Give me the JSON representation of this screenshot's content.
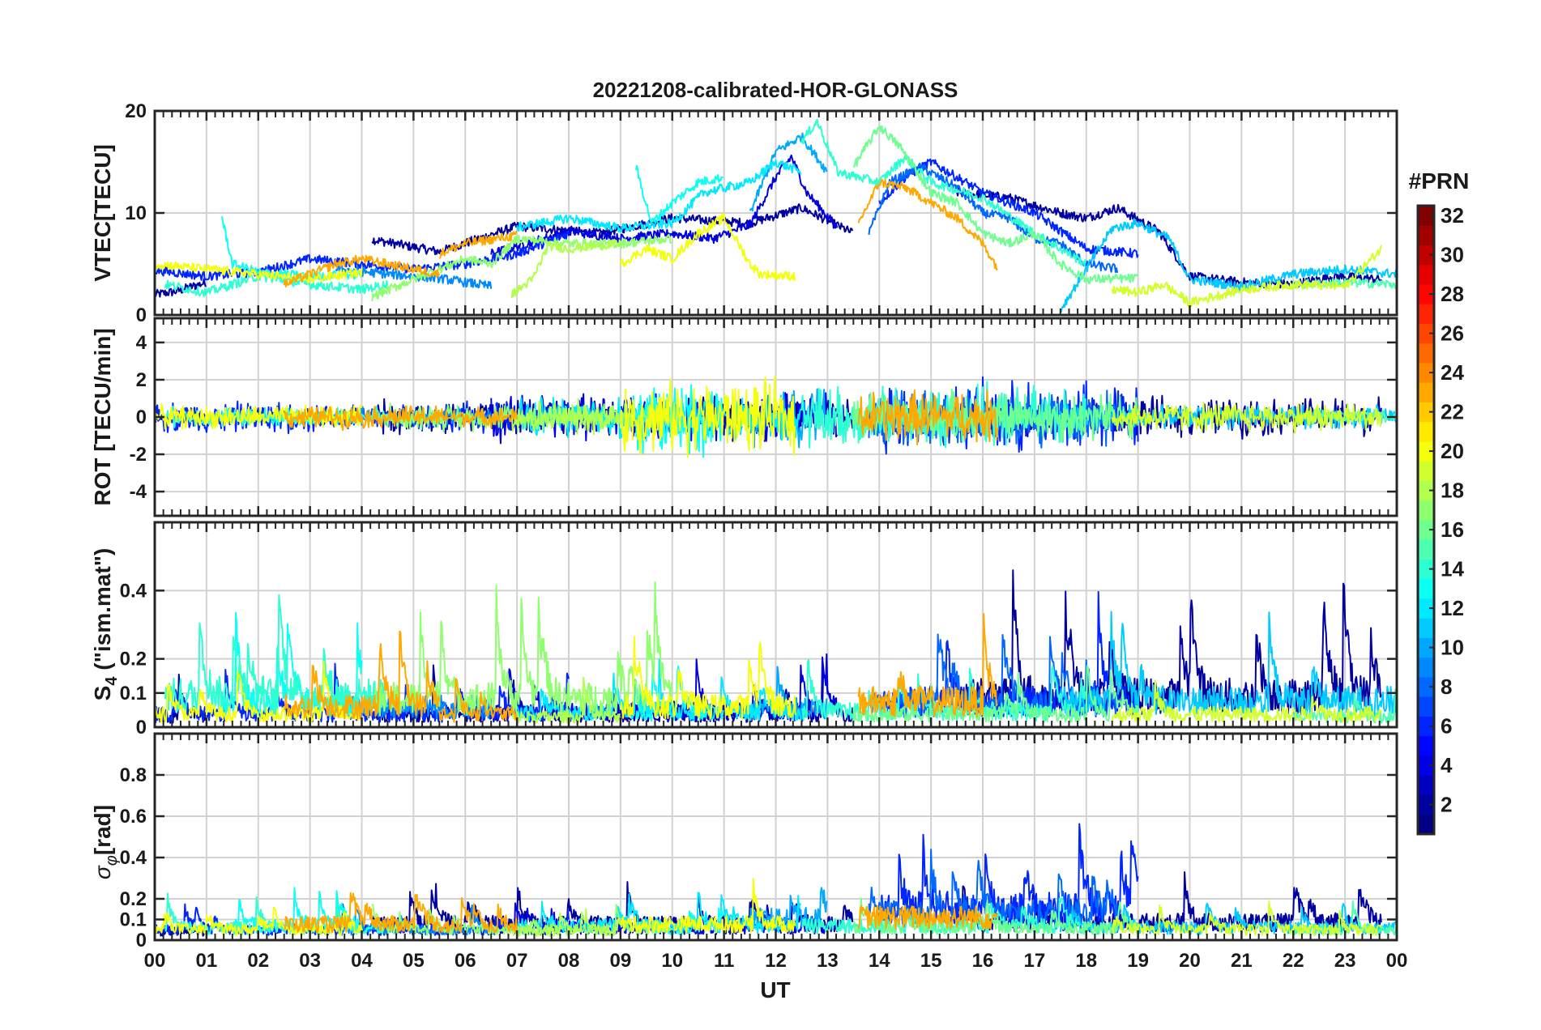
{
  "chart_data": {
    "type": "line",
    "title": "20221208-calibrated-HOR-GLONASS",
    "xlabel": "UT",
    "x_range_hours": [
      0,
      24
    ],
    "x_tick_labels": [
      "00",
      "01",
      "02",
      "03",
      "04",
      "05",
      "06",
      "07",
      "08",
      "09",
      "10",
      "11",
      "12",
      "13",
      "14",
      "15",
      "16",
      "17",
      "18",
      "19",
      "20",
      "21",
      "22",
      "23",
      "00"
    ],
    "grid": true,
    "panels": [
      {
        "id": "vtec",
        "ylabel": "VTEC[TECU]",
        "ylim": [
          0,
          20
        ],
        "yticks": [
          0,
          10,
          20
        ],
        "ytick_labels": [
          "0",
          "10",
          "20"
        ]
      },
      {
        "id": "rot",
        "ylabel": "ROT [TECU/min]",
        "ylim": [
          -5.3,
          5.3
        ],
        "yticks": [
          -4,
          -2,
          0,
          2,
          4
        ],
        "ytick_labels": [
          "-4",
          "-2",
          "0",
          "2",
          "4"
        ]
      },
      {
        "id": "s4",
        "ylabel": "S4 (\"ism.mat\")",
        "ylabel_main": "S",
        "ylabel_sub": "4",
        "ylabel_rest": " (\"ism.mat\")",
        "ylim": [
          0,
          0.6
        ],
        "yticks": [
          0,
          0.1,
          0.2,
          0.4
        ],
        "ytick_labels": [
          "0",
          "0.1",
          "0.2",
          "0.4"
        ]
      },
      {
        "id": "sigphi",
        "ylabel": "σφ[rad]",
        "ylabel_main": "σ",
        "ylabel_sub": "φ",
        "ylabel_rest": "[rad]",
        "ylim": [
          0,
          1
        ],
        "yticks": [
          0,
          0.1,
          0.2,
          0.4,
          0.6,
          0.8
        ],
        "ytick_labels": [
          "0",
          "0.1",
          "0.2",
          "0.4",
          "0.6",
          "0.8"
        ]
      }
    ],
    "colorbar": {
      "title": "#PRN",
      "range": [
        1,
        32
      ],
      "ticks": [
        2,
        4,
        6,
        8,
        10,
        12,
        14,
        16,
        18,
        20,
        22,
        24,
        26,
        28,
        30,
        32
      ],
      "tick_labels": [
        "2",
        "4",
        "6",
        "8",
        "10",
        "12",
        "14",
        "16",
        "18",
        "20",
        "22",
        "24",
        "26",
        "28",
        "30",
        "32"
      ],
      "colormap": "jet"
    },
    "series": [
      {
        "prn": 2,
        "vtec": [
          [
            0.0,
            2.0
          ],
          [
            0.4,
            2.3
          ],
          [
            1.0,
            3.2
          ]
        ],
        "rot_amp": 0.3,
        "s4_level": 0.04,
        "sig_level": 0.05
      },
      {
        "prn": 2,
        "vtec": [
          [
            4.2,
            7.4
          ],
          [
            5.5,
            6.2
          ],
          [
            7.0,
            8.7
          ],
          [
            8.6,
            8.0
          ],
          [
            10.0,
            9.5
          ],
          [
            11.5,
            9.0
          ],
          [
            12.5,
            10.5
          ],
          [
            13.5,
            8.0
          ]
        ],
        "rot_amp": 0.9,
        "s4_level": 0.05,
        "sig_level": 0.09
      },
      {
        "prn": 2,
        "vtec": [
          [
            15.5,
            12.0
          ],
          [
            16.5,
            11.5
          ],
          [
            17.5,
            10.0
          ],
          [
            18.0,
            9.5
          ],
          [
            18.6,
            10.5
          ],
          [
            19.4,
            8.2
          ],
          [
            20.0,
            3.8
          ],
          [
            21.0,
            3.2
          ],
          [
            22.0,
            3.0
          ],
          [
            22.8,
            3.8
          ],
          [
            23.7,
            3.5
          ]
        ],
        "rot_amp": 1.0,
        "s4_level": 0.12,
        "sig_level": 0.1
      },
      {
        "prn": 4,
        "vtec": [
          [
            6.5,
            6.0
          ],
          [
            8.0,
            8.2
          ],
          [
            9.0,
            7.5
          ],
          [
            10.0,
            8.0
          ],
          [
            10.8,
            7.5
          ],
          [
            11.5,
            8.8
          ],
          [
            12.0,
            13.5
          ],
          [
            12.3,
            15.5
          ],
          [
            12.6,
            12.0
          ],
          [
            13.2,
            8.5
          ]
        ],
        "rot_amp": 1.2,
        "s4_level": 0.06,
        "sig_level": 0.07
      },
      {
        "prn": 6,
        "vtec": [
          [
            0.0,
            4.4
          ],
          [
            1.0,
            3.8
          ],
          [
            2.0,
            4.2
          ],
          [
            3.0,
            5.5
          ],
          [
            4.0,
            5.0
          ],
          [
            5.0,
            4.5
          ],
          [
            6.0,
            5.0
          ],
          [
            7.0,
            6.0
          ],
          [
            8.0,
            8.0
          ]
        ],
        "rot_amp": 0.8,
        "s4_level": 0.05,
        "sig_level": 0.06
      },
      {
        "prn": 6,
        "vtec": [
          [
            14.0,
            11.0
          ],
          [
            14.5,
            13.5
          ],
          [
            15.0,
            15.0
          ],
          [
            15.5,
            13.5
          ],
          [
            16.0,
            12.0
          ],
          [
            17.0,
            10.0
          ],
          [
            18.0,
            6.5
          ],
          [
            19.0,
            6.0
          ]
        ],
        "rot_amp": 1.8,
        "s4_level": 0.1,
        "sig_level": 0.18
      },
      {
        "prn": 8,
        "vtec": [
          [
            13.8,
            8.0
          ],
          [
            14.2,
            13.0
          ],
          [
            14.8,
            14.5
          ],
          [
            15.5,
            12.5
          ],
          [
            16.0,
            10.0
          ],
          [
            16.5,
            9.5
          ],
          [
            17.0,
            7.5
          ],
          [
            17.5,
            7.0
          ],
          [
            18.0,
            5.0
          ],
          [
            18.6,
            4.5
          ]
        ],
        "rot_amp": 1.5,
        "s4_level": 0.09,
        "sig_level": 0.15
      },
      {
        "prn": 9,
        "vtec": [
          [
            3.5,
            4.5
          ],
          [
            4.5,
            4.0
          ],
          [
            5.5,
            3.6
          ],
          [
            6.5,
            2.8
          ]
        ],
        "rot_amp": 0.5,
        "s4_level": 0.08,
        "sig_level": 0.06
      },
      {
        "prn": 10,
        "vtec": [
          [
            11.5,
            10.0
          ],
          [
            12.0,
            16.0
          ],
          [
            12.5,
            17.5
          ],
          [
            13.0,
            14.0
          ]
        ],
        "rot_amp": 1.4,
        "s4_level": 0.07,
        "sig_level": 0.12
      },
      {
        "prn": 11,
        "vtec": [
          [
            17.5,
            0.5
          ],
          [
            18.0,
            4.5
          ],
          [
            18.5,
            8.5
          ],
          [
            19.0,
            9.0
          ],
          [
            19.6,
            7.5
          ],
          [
            20.0,
            3.5
          ],
          [
            21.0,
            2.8
          ],
          [
            22.0,
            4.0
          ],
          [
            23.0,
            4.5
          ],
          [
            24.0,
            4.0
          ]
        ],
        "rot_amp": 0.6,
        "s4_level": 0.1,
        "sig_level": 0.07
      },
      {
        "prn": 12,
        "vtec": [
          [
            7.0,
            8.6
          ],
          [
            8.0,
            9.5
          ],
          [
            9.0,
            8.5
          ],
          [
            10.0,
            9.0
          ],
          [
            10.6,
            12.0
          ],
          [
            11.5,
            13.0
          ],
          [
            12.0,
            15.0
          ],
          [
            12.5,
            14.0
          ]
        ],
        "rot_amp": 1.1,
        "s4_level": 0.06,
        "sig_level": 0.08
      },
      {
        "prn": 13,
        "vtec": [
          [
            1.3,
            9.5
          ],
          [
            1.5,
            5.0
          ],
          [
            2.0,
            4.2
          ],
          [
            3.0,
            3.8
          ],
          [
            4.0,
            4.0
          ]
        ],
        "rot_amp": 0.4,
        "s4_level": 0.09,
        "sig_level": 0.08
      },
      {
        "prn": 13,
        "vtec": [
          [
            9.3,
            14.5
          ],
          [
            9.6,
            9.0
          ],
          [
            10.0,
            11.0
          ],
          [
            10.5,
            13.0
          ],
          [
            11.0,
            13.5
          ]
        ],
        "rot_amp": 2.0,
        "s4_level": 0.06,
        "sig_level": 0.07
      },
      {
        "prn": 14,
        "vtec": [
          [
            0.2,
            3.0
          ],
          [
            1.0,
            2.2
          ],
          [
            2.0,
            3.8
          ],
          [
            3.0,
            3.0
          ],
          [
            4.0,
            2.5
          ],
          [
            4.5,
            3.0
          ]
        ],
        "rot_amp": 0.5,
        "s4_level": 0.12,
        "sig_level": 0.07
      },
      {
        "prn": 14,
        "vtec": [
          [
            12.5,
            17.0
          ],
          [
            12.8,
            19.0
          ],
          [
            13.2,
            14.0
          ],
          [
            14.0,
            13.0
          ],
          [
            14.5,
            15.5
          ],
          [
            15.0,
            13.0
          ],
          [
            16.0,
            11.5
          ],
          [
            17.0,
            8.0
          ],
          [
            18.0,
            5.0
          ]
        ],
        "rot_amp": 1.6,
        "s4_level": 0.06,
        "sig_level": 0.08
      },
      {
        "prn": 15,
        "vtec": [
          [
            22.0,
            3.0
          ],
          [
            23.0,
            3.2
          ],
          [
            24.0,
            3.0
          ]
        ],
        "rot_amp": 0.4,
        "s4_level": 0.04,
        "sig_level": 0.06
      },
      {
        "prn": 16,
        "vtec": [
          [
            13.5,
            14.5
          ],
          [
            14.0,
            18.5
          ],
          [
            14.4,
            16.5
          ],
          [
            15.0,
            12.0
          ],
          [
            15.5,
            11.0
          ],
          [
            16.0,
            8.0
          ],
          [
            16.5,
            7.0
          ],
          [
            17.0,
            8.0
          ],
          [
            17.5,
            5.0
          ],
          [
            18.0,
            3.5
          ],
          [
            19.0,
            3.6
          ]
        ],
        "rot_amp": 1.3,
        "s4_level": 0.05,
        "sig_level": 0.07
      },
      {
        "prn": 17,
        "vtec": [
          [
            4.2,
            1.8
          ],
          [
            5.0,
            3.5
          ],
          [
            6.0,
            5.5
          ],
          [
            6.5,
            5.0
          ],
          [
            7.0,
            7.5
          ],
          [
            8.0,
            7.0
          ],
          [
            9.0,
            7.0
          ],
          [
            10.0,
            7.5
          ]
        ],
        "rot_amp": 0.7,
        "s4_level": 0.11,
        "sig_level": 0.06
      },
      {
        "prn": 18,
        "vtec": [
          [
            6.9,
            2.0
          ],
          [
            7.3,
            3.5
          ],
          [
            7.6,
            6.8
          ],
          [
            8.0,
            6.5
          ],
          [
            9.0,
            7.0
          ]
        ],
        "rot_amp": 0.9,
        "s4_level": 0.04,
        "sig_level": 0.05
      },
      {
        "prn": 19,
        "vtec": [
          [
            18.5,
            2.5
          ],
          [
            19.0,
            2.2
          ],
          [
            19.5,
            3.0
          ],
          [
            20.0,
            1.2
          ],
          [
            21.0,
            2.5
          ],
          [
            22.0,
            3.0
          ],
          [
            23.0,
            2.8
          ],
          [
            23.7,
            6.5
          ]
        ],
        "rot_amp": 0.8,
        "s4_level": 0.05,
        "sig_level": 0.06
      },
      {
        "prn": 20,
        "vtec": [
          [
            0.0,
            5.0
          ],
          [
            1.0,
            4.5
          ],
          [
            2.0,
            4.0
          ],
          [
            3.0,
            3.5
          ],
          [
            4.0,
            4.2
          ]
        ],
        "rot_amp": 0.6,
        "s4_level": 0.05,
        "sig_level": 0.06
      },
      {
        "prn": 20,
        "vtec": [
          [
            9.0,
            5.0
          ],
          [
            9.5,
            6.5
          ],
          [
            10.0,
            5.5
          ],
          [
            10.5,
            8.0
          ],
          [
            11.0,
            9.5
          ],
          [
            11.5,
            5.0
          ],
          [
            11.7,
            4.0
          ],
          [
            12.4,
            3.8
          ]
        ],
        "rot_amp": 1.9,
        "s4_level": 0.08,
        "sig_level": 0.09
      },
      {
        "prn": 23,
        "vtec": [
          [
            2.5,
            3.0
          ],
          [
            3.0,
            4.0
          ],
          [
            3.5,
            5.0
          ],
          [
            4.0,
            5.5
          ],
          [
            5.0,
            4.5
          ],
          [
            5.5,
            4.0
          ]
        ],
        "rot_amp": 0.6,
        "s4_level": 0.08,
        "sig_level": 0.09
      },
      {
        "prn": 23,
        "vtec": [
          [
            5.5,
            6.0
          ],
          [
            6.0,
            7.0
          ],
          [
            7.0,
            7.8
          ]
        ],
        "rot_amp": 0.5,
        "s4_level": 0.05,
        "sig_level": 0.08
      },
      {
        "prn": 23,
        "vtec": [
          [
            13.6,
            9.0
          ],
          [
            14.0,
            13.0
          ],
          [
            14.5,
            12.5
          ],
          [
            15.0,
            11.0
          ],
          [
            15.5,
            9.5
          ],
          [
            16.0,
            7.0
          ],
          [
            16.3,
            4.5
          ]
        ],
        "rot_amp": 1.4,
        "s4_level": 0.1,
        "sig_level": 0.13
      }
    ]
  }
}
